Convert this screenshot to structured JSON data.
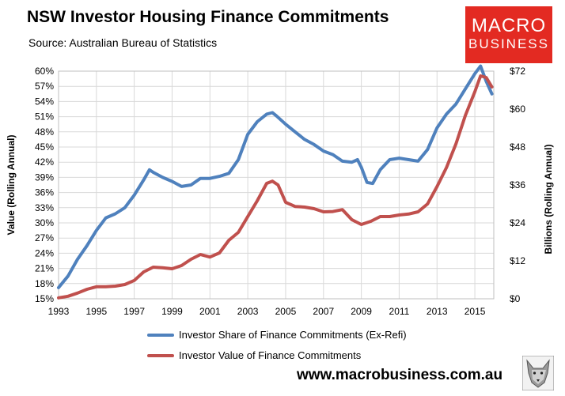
{
  "header": {
    "title": "NSW Investor Housing Finance Commitments",
    "subtitle": "Source: Australian Bureau of Statistics"
  },
  "logo": {
    "line1": "MACRO",
    "line2": "BUSINESS"
  },
  "footer": {
    "url": "www.macrobusiness.com.au"
  },
  "colors": {
    "share": "#4f81bd",
    "value": "#c0504d",
    "grid": "#d9d9d9"
  },
  "chart_data": {
    "type": "line",
    "legend_position": "bottom",
    "grid": true,
    "x_ticks": [
      "1993",
      "1995",
      "1997",
      "1999",
      "2001",
      "2003",
      "2005",
      "2007",
      "2009",
      "2011",
      "2013",
      "2015"
    ],
    "xlim": [
      1993,
      2016
    ],
    "left_axis": {
      "label": "Value (Rolling Annual)",
      "ylim": [
        15,
        60
      ],
      "ticks": [
        "15%",
        "18%",
        "21%",
        "24%",
        "27%",
        "30%",
        "33%",
        "36%",
        "39%",
        "42%",
        "45%",
        "48%",
        "51%",
        "54%",
        "57%",
        "60%"
      ]
    },
    "right_axis": {
      "label": "Billions (Rolling Annual)",
      "ylim": [
        0,
        72
      ],
      "ticks": [
        "$0",
        "$12",
        "$24",
        "$36",
        "$48",
        "$60",
        "$72"
      ]
    },
    "series": [
      {
        "name": "Investor Share of Finance Commitments (Ex-Refi)",
        "axis": "left",
        "color": "#4f81bd",
        "x": [
          1993.0,
          1993.5,
          1994.0,
          1994.5,
          1995.0,
          1995.5,
          1996.0,
          1996.5,
          1997.0,
          1997.5,
          1997.8,
          1998.0,
          1998.5,
          1999.0,
          1999.5,
          2000.0,
          2000.5,
          2001.0,
          2001.5,
          2002.0,
          2002.5,
          2003.0,
          2003.5,
          2004.0,
          2004.3,
          2004.5,
          2005.0,
          2005.5,
          2006.0,
          2006.5,
          2007.0,
          2007.5,
          2008.0,
          2008.5,
          2008.8,
          2009.0,
          2009.3,
          2009.6,
          2010.0,
          2010.5,
          2011.0,
          2011.5,
          2012.0,
          2012.5,
          2013.0,
          2013.5,
          2014.0,
          2014.5,
          2015.0,
          2015.3,
          2015.6,
          2015.9
        ],
        "values": [
          17.2,
          19.5,
          22.8,
          25.5,
          28.5,
          31.0,
          31.8,
          33.0,
          35.5,
          38.5,
          40.5,
          40.0,
          39.0,
          38.2,
          37.2,
          37.5,
          38.8,
          38.8,
          39.2,
          39.8,
          42.5,
          47.5,
          50.0,
          51.5,
          51.8,
          51.2,
          49.5,
          48.0,
          46.5,
          45.5,
          44.2,
          43.5,
          42.2,
          42.0,
          42.5,
          41.0,
          38.0,
          37.8,
          40.5,
          42.5,
          42.8,
          42.5,
          42.2,
          44.5,
          48.8,
          51.5,
          53.5,
          56.5,
          59.5,
          61.0,
          58.0,
          55.5
        ]
      },
      {
        "name": "Investor Value of Finance Commitments",
        "axis": "right",
        "color": "#c0504d",
        "x": [
          1993.0,
          1993.5,
          1994.0,
          1994.5,
          1995.0,
          1995.5,
          1996.0,
          1996.5,
          1997.0,
          1997.5,
          1998.0,
          1998.5,
          1999.0,
          1999.5,
          2000.0,
          2000.5,
          2001.0,
          2001.5,
          2002.0,
          2002.5,
          2003.0,
          2003.5,
          2004.0,
          2004.3,
          2004.6,
          2005.0,
          2005.5,
          2006.0,
          2006.5,
          2007.0,
          2007.5,
          2008.0,
          2008.5,
          2009.0,
          2009.5,
          2010.0,
          2010.5,
          2011.0,
          2011.5,
          2012.0,
          2012.5,
          2013.0,
          2013.5,
          2014.0,
          2014.5,
          2015.0,
          2015.3,
          2015.6,
          2015.9
        ],
        "values": [
          0.3,
          0.8,
          1.8,
          3.0,
          3.8,
          3.8,
          4.0,
          4.5,
          5.8,
          8.5,
          10.0,
          9.8,
          9.5,
          10.5,
          12.5,
          14.0,
          13.2,
          14.5,
          18.5,
          21.0,
          26.0,
          31.0,
          36.5,
          37.2,
          36.0,
          30.5,
          29.2,
          29.0,
          28.5,
          27.5,
          27.6,
          28.2,
          25.0,
          23.5,
          24.5,
          26.0,
          26.0,
          26.5,
          26.8,
          27.5,
          30.0,
          35.5,
          41.5,
          49.0,
          58.0,
          65.5,
          70.5,
          70.0,
          67.0
        ]
      }
    ]
  }
}
